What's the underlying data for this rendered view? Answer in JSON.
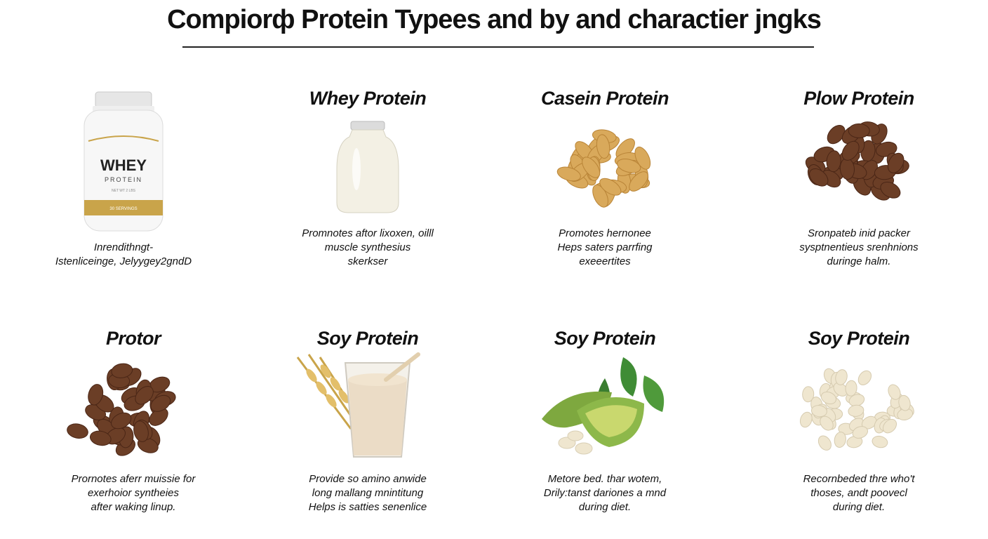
{
  "page": {
    "title": "Compiorф Protein Typees and by and charactier jngks"
  },
  "cards": [
    {
      "heading": "",
      "icon": "whey-tub-icon",
      "label": {
        "brand": "WHEY",
        "sub": "PROTEIN",
        "fine": "NET WT 2 LBS",
        "band": "30 SERVINGS"
      },
      "lines": [
        "Inrendithngt-",
        "Istenliceinge, Jelyygey2gndD"
      ]
    },
    {
      "heading": "Whey Protein",
      "icon": "milk-jar-icon",
      "lines": [
        "Promnotes aftor lixoxen, oilll",
        "muscle synthesius",
        "skerkser"
      ]
    },
    {
      "heading": "Casein Protein",
      "icon": "almonds-icon",
      "lines": [
        "Promotes hernonee",
        "Heps saters parrfing",
        "exeeertites"
      ]
    },
    {
      "heading": "Plow Protein",
      "icon": "cacao-beans-icon",
      "lines": [
        "Sronpateb inid packer",
        "sysptnentieus srenhnions",
        "duringe halm."
      ]
    },
    {
      "heading": "Protor",
      "icon": "cacao-beans-icon",
      "lines": [
        "Prornotes aferr muissie for",
        "exerhoior syntheies",
        "after waking linup."
      ]
    },
    {
      "heading": "Soy Protein",
      "icon": "shake-glass-wheat-icon",
      "lines": [
        "Provide so amino anwide",
        "long mallang mnintitung",
        "Helps is satties senenlice"
      ]
    },
    {
      "heading": "Soy Protein",
      "icon": "pea-pod-leaves-icon",
      "lines": [
        "Metore bed. thar wotem,",
        "Drily:tanst dariones a mnd",
        "during diet."
      ]
    },
    {
      "heading": "Soy Protein",
      "icon": "white-beans-icon",
      "lines": [
        "Recornbeded thre who't",
        "thoses, andt poovecl",
        "during diet."
      ]
    }
  ],
  "colors": {
    "text": "#111111",
    "gold": "#c9a44a",
    "cacao": "#6b3e26",
    "almond": "#d9a95b",
    "green": "#4f8a2e",
    "bean": "#efe6cf",
    "milk": "#f3f0e4"
  }
}
